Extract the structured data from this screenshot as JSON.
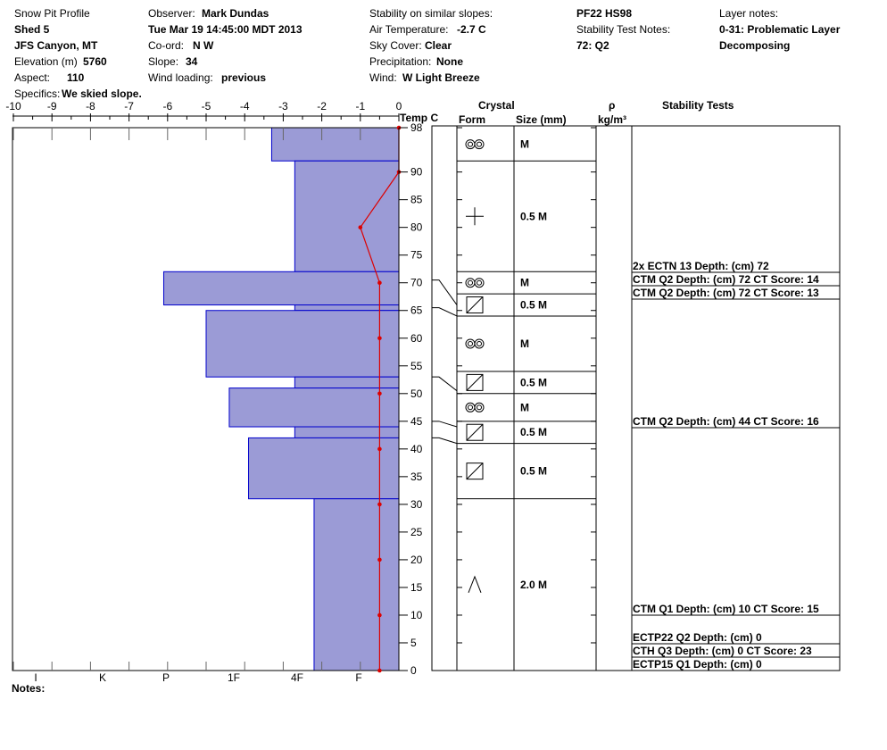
{
  "header": {
    "title": "Snow Pit Profile",
    "location1": "Shed 5",
    "location2": "JFS Canyon, MT",
    "elevation_label": "Elevation (m)",
    "elevation": "5760",
    "aspect_label": "Aspect:",
    "aspect": "110",
    "specifics_label": "Specifics:",
    "specifics": "We skied slope.",
    "observer_label": "Observer:",
    "observer": "Mark Dundas",
    "datetime": "Tue Mar 19 14:45:00 MDT 2013",
    "coord_label": "Co-ord:",
    "coord": "N  W",
    "slope_label": "Slope:",
    "slope": "34",
    "wind_loading_label": "Wind loading:",
    "wind_loading": "previous",
    "stability_label": "Stability on similar slopes:",
    "air_temp_label": "Air Temperature:",
    "air_temp": "-2.7 C",
    "sky_label": "Sky Cover:",
    "sky": "Clear",
    "precip_label": "Precipitation:",
    "precip": "None",
    "wind_label": "Wind:",
    "wind": "W Light Breeze",
    "pf_hs": "PF22 HS98",
    "stability_notes_label": "Stability Test Notes:",
    "stability_notes": "72: Q2",
    "layer_notes_label": "Layer notes:",
    "layer_note1": "0-31: Problematic Layer",
    "layer_note2": "Decomposing"
  },
  "notes_label": "Notes:",
  "columns": {
    "temp": "Temp C",
    "crystal": "Crystal",
    "form": "Form",
    "size": "Size (mm)",
    "rho": "ρ",
    "density_unit": "kg/m³",
    "stability": "Stability Tests"
  },
  "chart_data": {
    "type": "snow_profile",
    "temp_axis": {
      "range": [
        -10,
        0
      ],
      "ticks": [
        -10,
        -9,
        -8,
        -7,
        -6,
        -5,
        -4,
        -3,
        -2,
        -1,
        0
      ],
      "label": "Temp C"
    },
    "height_axis": {
      "range": [
        0,
        98
      ],
      "ticks": [
        98,
        90,
        85,
        80,
        75,
        70,
        65,
        60,
        55,
        50,
        45,
        40,
        35,
        30,
        25,
        20,
        15,
        10,
        5,
        0
      ]
    },
    "hardness_labels": [
      "I",
      "K",
      "P",
      "1F",
      "4F",
      "F"
    ],
    "hardness_bars": [
      {
        "bottom": 92,
        "top": 98,
        "temp": -3.3
      },
      {
        "bottom": 72,
        "top": 92,
        "temp": -2.7
      },
      {
        "bottom": 66,
        "top": 72,
        "temp": -6.1
      },
      {
        "bottom": 65,
        "top": 66,
        "temp": -2.7
      },
      {
        "bottom": 53,
        "top": 65,
        "temp": -5.0
      },
      {
        "bottom": 51,
        "top": 53,
        "temp": -2.7
      },
      {
        "bottom": 44,
        "top": 51,
        "temp": -4.4
      },
      {
        "bottom": 42,
        "top": 44,
        "temp": -2.7
      },
      {
        "bottom": 31,
        "top": 42,
        "temp": -3.9
      },
      {
        "bottom": 0,
        "top": 31,
        "temp": -2.2
      }
    ],
    "temperature_profile": [
      {
        "height": 98,
        "temp": 0
      },
      {
        "height": 90,
        "temp": 0
      },
      {
        "height": 80,
        "temp": -1.0
      },
      {
        "height": 70,
        "temp": -0.5
      },
      {
        "height": 60,
        "temp": -0.5
      },
      {
        "height": 50,
        "temp": -0.5
      },
      {
        "height": 40,
        "temp": -0.5
      },
      {
        "height": 30,
        "temp": -0.5
      },
      {
        "height": 20,
        "temp": -0.5
      },
      {
        "height": 10,
        "temp": -0.5
      },
      {
        "height": 0,
        "temp": -0.5
      }
    ],
    "layers": [
      {
        "bottom": 92,
        "top": 98,
        "form": "rounds",
        "size": "M"
      },
      {
        "bottom": 72,
        "top": 92,
        "form": "plus",
        "size": "0.5 M"
      },
      {
        "bottom": 68,
        "top": 72,
        "form": "rounds",
        "size": "M"
      },
      {
        "bottom": 64,
        "top": 68,
        "form": "facet",
        "size": "0.5 M"
      },
      {
        "bottom": 54,
        "top": 64,
        "form": "rounds",
        "size": "M"
      },
      {
        "bottom": 50,
        "top": 54,
        "form": "facet",
        "size": "0.5 M"
      },
      {
        "bottom": 45,
        "top": 50,
        "form": "rounds",
        "size": "M"
      },
      {
        "bottom": 41,
        "top": 45,
        "form": "facet",
        "size": "0.5 M"
      },
      {
        "bottom": 31,
        "top": 41,
        "form": "facet",
        "size": "0.5 M"
      },
      {
        "bottom": 0,
        "top": 31,
        "form": "depth-hoar",
        "size": "2.0 M"
      }
    ],
    "stability_tests": [
      {
        "depth": 72,
        "text": "2x ECTN 13   Depth: (cm) 72"
      },
      {
        "depth": 72,
        "text": "CTM Q2 Depth: (cm) 72 CT Score: 14"
      },
      {
        "depth": 72,
        "text": "CTM Q2 Depth: (cm) 72 CT Score: 13"
      },
      {
        "depth": 44,
        "text": "CTM Q2 Depth: (cm) 44 CT Score: 16"
      },
      {
        "depth": 10,
        "text": "CTM Q1 Depth: (cm) 10 CT Score: 15"
      },
      {
        "depth": 0,
        "text": "ECTP22 Q2 Depth: (cm) 0"
      },
      {
        "depth": 0,
        "text": "CTH Q3 Depth: (cm) 0 CT Score: 23"
      },
      {
        "depth": 0,
        "text": "ECTP15 Q1 Depth: (cm) 0"
      }
    ],
    "colors": {
      "bar_fill": "#9b9bd6",
      "bar_stroke": "#0000cc",
      "temp_line": "#dd0000"
    }
  }
}
